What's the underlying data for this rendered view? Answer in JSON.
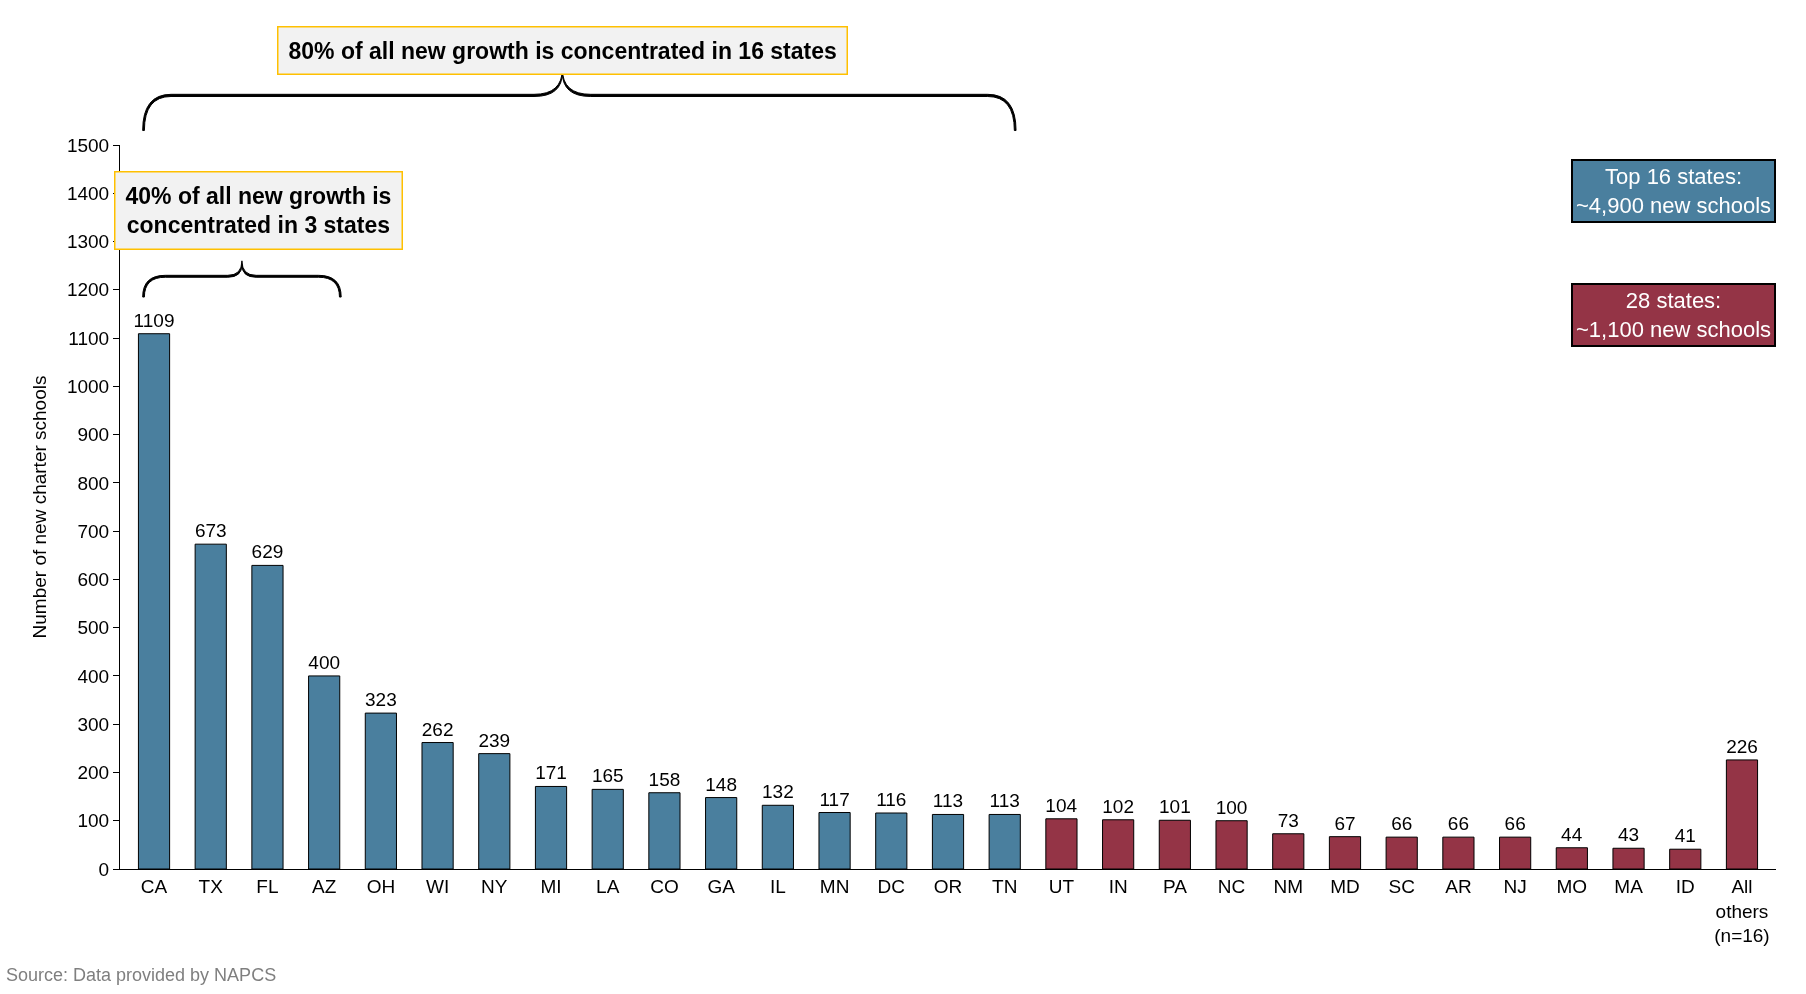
{
  "chart_data": {
    "type": "bar",
    "categories": [
      "CA",
      "TX",
      "FL",
      "AZ",
      "OH",
      "WI",
      "NY",
      "MI",
      "LA",
      "CO",
      "GA",
      "IL",
      "MN",
      "DC",
      "OR",
      "TN",
      "UT",
      "IN",
      "PA",
      "NC",
      "NM",
      "MD",
      "SC",
      "AR",
      "NJ",
      "MO",
      "MA",
      "ID",
      "All others (n=16)"
    ],
    "series": [
      {
        "name": "Top 16 states: ~4,900 new schools",
        "color": "#4a7f9e",
        "values": [
          1109,
          673,
          629,
          400,
          323,
          262,
          239,
          171,
          165,
          158,
          148,
          132,
          117,
          116,
          113,
          113,
          null,
          null,
          null,
          null,
          null,
          null,
          null,
          null,
          null,
          null,
          null,
          null,
          null
        ]
      },
      {
        "name": "28 states: ~1,100 new schools",
        "color": "#943446",
        "values": [
          null,
          null,
          null,
          null,
          null,
          null,
          null,
          null,
          null,
          null,
          null,
          null,
          null,
          null,
          null,
          null,
          104,
          102,
          101,
          100,
          73,
          67,
          66,
          66,
          66,
          44,
          43,
          41,
          226
        ]
      }
    ],
    "ylabel": "Number of new charter schools",
    "ylim": [
      0,
      1500
    ],
    "yticks": [
      0,
      100,
      200,
      300,
      400,
      500,
      600,
      700,
      800,
      900,
      1000,
      1100,
      1200,
      1300,
      1400,
      1500
    ],
    "data_labels": true,
    "legend": "top right",
    "annotations": [
      "80% of all new growth is concentrated in 16 states",
      "40% of all new growth is concentrated in 3 states",
      "Source: Data provided by NAPCS"
    ]
  }
}
